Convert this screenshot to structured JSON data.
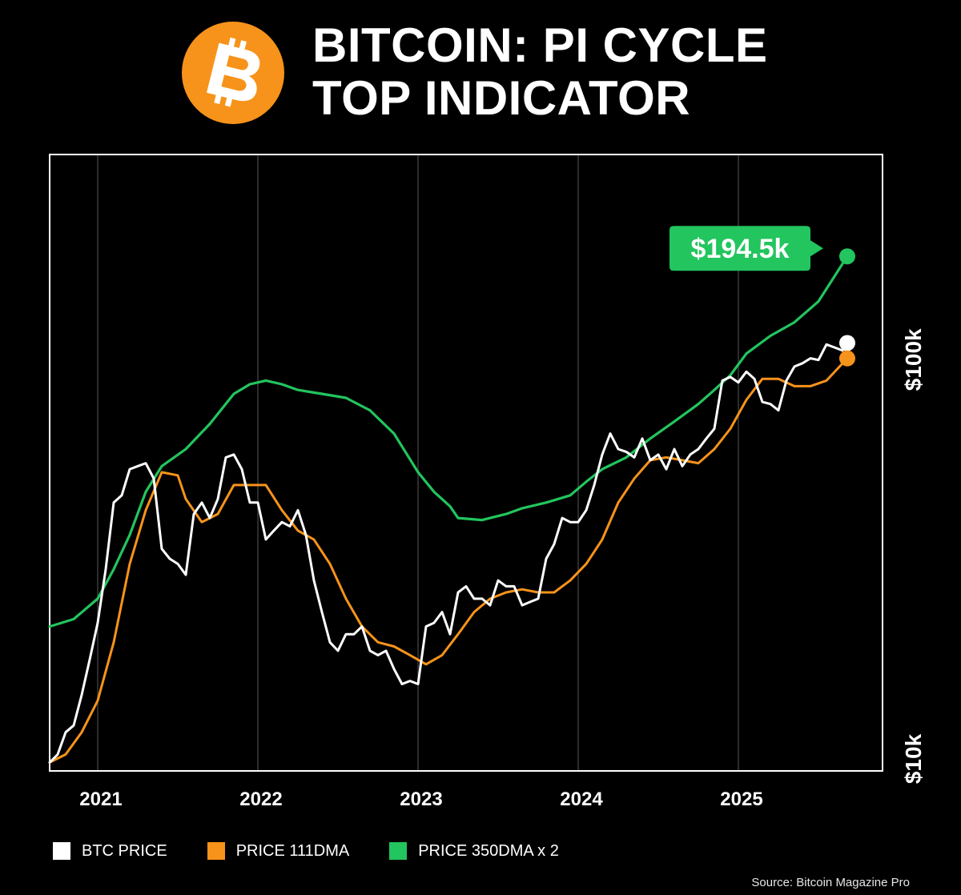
{
  "header": {
    "title_line1": "BITCOIN: PI CYCLE",
    "title_line2": "TOP INDICATOR"
  },
  "icons": {
    "logo": "bitcoin-logo-icon"
  },
  "colors": {
    "background": "#000000",
    "btc_price": "#ffffff",
    "price_111dma": "#f7931a",
    "price_350dma_x2": "#22c55e",
    "logo_orange": "#f7931a"
  },
  "chart_data": {
    "type": "line",
    "title": "BITCOIN: PI CYCLE TOP INDICATOR",
    "y_scale": "log",
    "ylim": [
      10000,
      350000
    ],
    "xlim": [
      2020.7,
      2025.9
    ],
    "x_ticks": [
      2021,
      2022,
      2023,
      2024,
      2025
    ],
    "x_tick_labels": [
      "2021",
      "2022",
      "2023",
      "2024",
      "2025"
    ],
    "y_ticks": [
      10000,
      100000
    ],
    "y_tick_labels": [
      "$10k",
      "$100k"
    ],
    "grid": "vertical",
    "callout": {
      "label": "$194.5k",
      "value": 194500,
      "series": "PRICE 350DMA x 2"
    },
    "series": [
      {
        "name": "BTC PRICE",
        "x": [
          2020.7,
          2020.75,
          2020.8,
          2020.85,
          2020.9,
          2020.95,
          2021.0,
          2021.05,
          2021.1,
          2021.15,
          2021.2,
          2021.25,
          2021.3,
          2021.35,
          2021.4,
          2021.45,
          2021.5,
          2021.55,
          2021.6,
          2021.65,
          2021.7,
          2021.75,
          2021.8,
          2021.85,
          2021.9,
          2021.95,
          2022.0,
          2022.05,
          2022.1,
          2022.15,
          2022.2,
          2022.25,
          2022.3,
          2022.35,
          2022.4,
          2022.45,
          2022.5,
          2022.55,
          2022.6,
          2022.65,
          2022.7,
          2022.75,
          2022.8,
          2022.85,
          2022.9,
          2022.95,
          2023.0,
          2023.05,
          2023.1,
          2023.15,
          2023.2,
          2023.25,
          2023.3,
          2023.35,
          2023.4,
          2023.45,
          2023.5,
          2023.55,
          2023.6,
          2023.65,
          2023.7,
          2023.75,
          2023.8,
          2023.85,
          2023.9,
          2023.95,
          2024.0,
          2024.05,
          2024.1,
          2024.15,
          2024.2,
          2024.25,
          2024.3,
          2024.35,
          2024.4,
          2024.45,
          2024.5,
          2024.55,
          2024.6,
          2024.65,
          2024.7,
          2024.75,
          2024.8,
          2024.85,
          2024.9,
          2024.95,
          2025.0,
          2025.05,
          2025.1,
          2025.15,
          2025.2,
          2025.25,
          2025.3,
          2025.35,
          2025.4,
          2025.45,
          2025.5,
          2025.55,
          2025.6,
          2025.65,
          2025.68
        ],
        "values": [
          10500,
          11000,
          12500,
          13000,
          15500,
          19000,
          23500,
          32000,
          47000,
          49000,
          57000,
          58000,
          59000,
          54000,
          36000,
          34000,
          33000,
          31000,
          44000,
          47000,
          43000,
          48000,
          61000,
          62000,
          57000,
          47000,
          47000,
          38000,
          40000,
          42000,
          41000,
          45000,
          39000,
          30000,
          25000,
          21000,
          20000,
          22000,
          22000,
          23000,
          20000,
          19500,
          20000,
          18000,
          16500,
          16800,
          16500,
          23000,
          23500,
          25000,
          22000,
          28000,
          29000,
          27000,
          27000,
          26000,
          30000,
          29000,
          29000,
          26000,
          26500,
          27000,
          34000,
          37000,
          43000,
          42000,
          42000,
          45000,
          52000,
          62000,
          70000,
          64000,
          63000,
          61000,
          68000,
          60000,
          62000,
          57000,
          64000,
          58000,
          62000,
          64000,
          68000,
          72000,
          95000,
          97000,
          94000,
          100000,
          96000,
          84000,
          83000,
          80000,
          95000,
          103000,
          105000,
          108000,
          107000,
          117000,
          115000,
          113000,
          118000
        ]
      },
      {
        "name": "PRICE 111DMA",
        "x": [
          2020.7,
          2020.8,
          2020.9,
          2021.0,
          2021.1,
          2021.2,
          2021.3,
          2021.4,
          2021.5,
          2021.55,
          2021.65,
          2021.75,
          2021.85,
          2021.95,
          2022.05,
          2022.15,
          2022.25,
          2022.35,
          2022.45,
          2022.55,
          2022.65,
          2022.75,
          2022.85,
          2022.95,
          2023.05,
          2023.15,
          2023.25,
          2023.35,
          2023.45,
          2023.55,
          2023.65,
          2023.75,
          2023.85,
          2023.95,
          2024.05,
          2024.15,
          2024.25,
          2024.35,
          2024.45,
          2024.55,
          2024.65,
          2024.75,
          2024.85,
          2024.95,
          2025.05,
          2025.15,
          2025.25,
          2025.35,
          2025.45,
          2025.55,
          2025.68
        ],
        "values": [
          10500,
          11000,
          12500,
          15000,
          21000,
          33000,
          45000,
          56000,
          55000,
          48000,
          42000,
          44000,
          52000,
          52000,
          52000,
          45000,
          40000,
          38000,
          33000,
          27000,
          23000,
          21000,
          20500,
          19500,
          18500,
          19500,
          22000,
          25000,
          27000,
          28000,
          28500,
          28000,
          28000,
          30000,
          33000,
          38000,
          47000,
          54000,
          60000,
          61000,
          60000,
          59000,
          64000,
          72000,
          85000,
          96000,
          96000,
          92000,
          92000,
          95000,
          108000
        ]
      },
      {
        "name": "PRICE 350DMA x 2",
        "x": [
          2020.7,
          2020.85,
          2021.0,
          2021.1,
          2021.2,
          2021.3,
          2021.4,
          2021.55,
          2021.7,
          2021.85,
          2021.95,
          2022.05,
          2022.15,
          2022.25,
          2022.4,
          2022.55,
          2022.7,
          2022.85,
          2023.0,
          2023.1,
          2023.2,
          2023.25,
          2023.4,
          2023.55,
          2023.65,
          2023.8,
          2023.95,
          2024.05,
          2024.15,
          2024.3,
          2024.45,
          2024.6,
          2024.75,
          2024.85,
          2024.95,
          2025.05,
          2025.2,
          2025.35,
          2025.5,
          2025.68
        ],
        "values": [
          23000,
          24000,
          27000,
          32000,
          39000,
          50000,
          58000,
          64000,
          74000,
          88000,
          93000,
          95000,
          93000,
          90000,
          88000,
          86000,
          80000,
          70000,
          56000,
          50000,
          46000,
          43000,
          42500,
          44000,
          45500,
          47000,
          49000,
          53000,
          57000,
          61000,
          68000,
          75000,
          83000,
          90000,
          98000,
          111000,
          123000,
          133000,
          150000,
          194500
        ]
      }
    ]
  },
  "legend": {
    "items": [
      {
        "label": "BTC PRICE",
        "color": "#ffffff"
      },
      {
        "label": "PRICE 111DMA",
        "color": "#f7931a"
      },
      {
        "label": "PRICE 350DMA x 2",
        "color": "#22c55e"
      }
    ]
  },
  "footer": {
    "source": "Source: Bitcoin Magazine Pro"
  }
}
